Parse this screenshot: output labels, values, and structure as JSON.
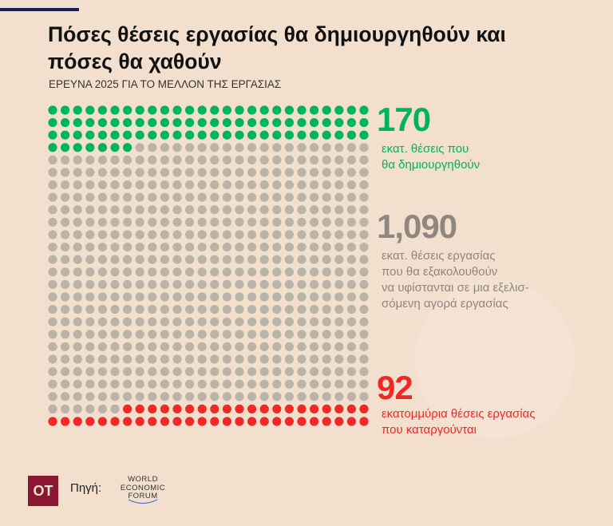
{
  "title": "Πόσες θέσεις εργασίας θα δημιουργηθούν και πόσες θα χαθούν",
  "subtitle": "ΕΡΕΥΝΑ 2025 ΓΙΑ ΤΟ ΜΕΛΛΟΝ ΤΗΣ ΕΡΓΑΣΙΑΣ",
  "chart_data": {
    "type": "waffle",
    "grid": {
      "rows": 26,
      "columns": 26,
      "units_per_dot_millions": 2
    },
    "series": [
      {
        "value": 170,
        "label": "170",
        "description_lines": [
          "εκατ. θέσεις που",
          "θα δημιουργηθούν"
        ],
        "color": "#00b35f"
      },
      {
        "value": 1090,
        "label": "1,090",
        "description_lines": [
          "εκατ. θέσεις εργασίας",
          "που θα εξακολουθούν",
          "να υφίστανται σε μια εξελισ-",
          "σόμενη αγορά εργασίας"
        ],
        "color": "#bbb2a9"
      },
      {
        "value": 92,
        "label": "92",
        "description_lines": [
          "εκατομμύρια θέσεις εργασίας",
          "που καταργούνται"
        ],
        "color": "#f02828"
      }
    ]
  },
  "footer": {
    "logo": "OT",
    "source_label": "Πηγή:",
    "source_logo": "WORLD ECONOMIC FORUM"
  }
}
